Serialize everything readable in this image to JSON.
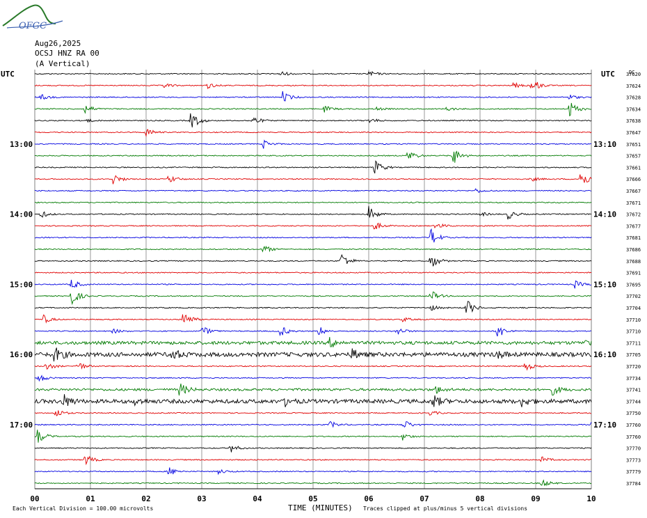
{
  "header": {
    "logo_text": "OFGC",
    "date": "Aug26,2025",
    "station": "OCSJ HNZ RA 00",
    "component": "(A Vertical)",
    "left_timezone": "UTC",
    "right_timezone": "UTC",
    "right_column_unit": "DC"
  },
  "footer": {
    "scale_note": "Each Vertical Division =  100.00 microvolts",
    "xlabel": "TIME (MINUTES)",
    "clip_note": "Traces clipped at plus/minus 5 vertical divisions"
  },
  "colors": {
    "black": "#000000",
    "red": "#e00000",
    "blue": "#0000e0",
    "green": "#007a00",
    "grid": "#808080"
  },
  "chart_data": {
    "type": "line",
    "subtype": "helicorder",
    "x_range": [
      0,
      10
    ],
    "x_ticks": [
      "00",
      "01",
      "02",
      "03",
      "04",
      "05",
      "06",
      "07",
      "08",
      "09",
      "10"
    ],
    "trace_colors_cycle": [
      "black",
      "red",
      "blue",
      "green"
    ],
    "left_hour_labels": [
      {
        "label": "13:00",
        "trace_index": 6
      },
      {
        "label": "14:00",
        "trace_index": 12
      },
      {
        "label": "15:00",
        "trace_index": 18
      },
      {
        "label": "16:00",
        "trace_index": 24
      },
      {
        "label": "17:00",
        "trace_index": 30
      }
    ],
    "right_hour_labels": [
      {
        "label": "13:10",
        "trace_index": 6
      },
      {
        "label": "14:10",
        "trace_index": 12
      },
      {
        "label": "15:10",
        "trace_index": 18
      },
      {
        "label": "16:10",
        "trace_index": 24
      },
      {
        "label": "17:10",
        "trace_index": 30
      }
    ],
    "dc_values": [
      "37620",
      "37624",
      "37628",
      "37634",
      "37638",
      "37647",
      "37651",
      "37657",
      "37661",
      "37666",
      "37667",
      "37671",
      "37672",
      "37677",
      "37681",
      "37686",
      "37688",
      "37691",
      "37695",
      "37702",
      "37704",
      "37710",
      "37710",
      "37711",
      "37705",
      "37720",
      "37734",
      "37741",
      "37744",
      "37750",
      "37760",
      "37760",
      "37770",
      "37773",
      "37779",
      "37784"
    ],
    "events": [
      [
        [
          4.4,
          0.5
        ],
        [
          6.0,
          0.45
        ]
      ],
      [
        [
          2.3,
          0.45
        ],
        [
          3.1,
          0.5
        ],
        [
          8.6,
          0.45
        ],
        [
          8.9,
          0.7
        ],
        [
          9.0,
          0.35
        ]
      ],
      [
        [
          0.1,
          0.5
        ],
        [
          4.45,
          0.9
        ],
        [
          9.6,
          0.45
        ]
      ],
      [
        [
          0.9,
          0.8
        ],
        [
          5.2,
          0.5
        ],
        [
          6.1,
          0.35
        ],
        [
          7.4,
          0.35
        ],
        [
          9.6,
          1.4
        ]
      ],
      [
        [
          0.9,
          0.35
        ],
        [
          2.8,
          1.6
        ],
        [
          3.9,
          0.8
        ],
        [
          6.0,
          0.45
        ]
      ],
      [
        [
          2.0,
          0.7
        ]
      ],
      [
        [
          4.1,
          0.7
        ]
      ],
      [
        [
          6.7,
          1.0
        ],
        [
          7.5,
          1.6
        ]
      ],
      [
        [
          6.1,
          1.3
        ]
      ],
      [
        [
          1.4,
          0.9
        ],
        [
          2.4,
          0.7
        ],
        [
          8.9,
          0.4
        ],
        [
          9.8,
          1.6
        ]
      ],
      [
        [
          7.9,
          0.4
        ]
      ],
      [],
      [
        [
          0.1,
          0.6
        ],
        [
          6.0,
          1.2
        ],
        [
          8.0,
          0.35
        ],
        [
          8.5,
          0.8
        ]
      ],
      [
        [
          6.1,
          0.7
        ],
        [
          7.2,
          0.6
        ]
      ],
      [
        [
          7.1,
          1.6
        ]
      ],
      [
        [
          4.1,
          0.7
        ]
      ],
      [
        [
          5.5,
          1.4
        ],
        [
          7.1,
          1.4
        ]
      ],
      [],
      [
        [
          0.65,
          0.9
        ],
        [
          9.7,
          0.6
        ]
      ],
      [
        [
          0.65,
          1.6
        ],
        [
          7.1,
          1.0
        ]
      ],
      [
        [
          7.1,
          0.5
        ],
        [
          7.75,
          1.4
        ]
      ],
      [
        [
          0.15,
          0.7
        ],
        [
          2.65,
          1.6
        ],
        [
          6.6,
          0.4
        ]
      ],
      [
        [
          1.4,
          0.4
        ],
        [
          3.0,
          0.9
        ],
        [
          4.4,
          1.0
        ],
        [
          5.1,
          0.8
        ],
        [
          6.5,
          0.7
        ],
        [
          8.3,
          1.3
        ]
      ],
      [
        [
          5.3,
          0.8
        ],
        [
          9.9,
          0.4
        ]
      ],
      [
        [
          0.35,
          1.2
        ],
        [
          2.45,
          1.0
        ],
        [
          5.7,
          0.8
        ],
        [
          8.3,
          0.6
        ]
      ],
      [
        [
          0.2,
          0.7
        ],
        [
          0.75,
          0.9
        ],
        [
          8.8,
          0.8
        ]
      ],
      [
        [
          0.05,
          0.8
        ]
      ],
      [
        [
          2.6,
          1.1
        ],
        [
          7.2,
          0.6
        ],
        [
          9.3,
          0.8
        ]
      ],
      [
        [
          0.5,
          1.2
        ],
        [
          1.8,
          0.5
        ],
        [
          4.5,
          0.6
        ],
        [
          7.15,
          1.0
        ],
        [
          8.75,
          0.8
        ]
      ],
      [
        [
          0.35,
          0.9
        ],
        [
          7.1,
          0.4
        ]
      ],
      [
        [
          5.3,
          0.6
        ],
        [
          6.6,
          1.0
        ],
        [
          10.0,
          0.35
        ]
      ],
      [
        [
          0.05,
          1.2
        ],
        [
          6.6,
          0.6
        ]
      ],
      [
        [
          3.5,
          0.8
        ]
      ],
      [
        [
          0.9,
          0.9
        ],
        [
          9.1,
          0.5
        ]
      ],
      [
        [
          2.4,
          0.8
        ],
        [
          3.3,
          0.4
        ]
      ],
      [
        [
          9.1,
          0.7
        ]
      ]
    ],
    "noisy_traces": {
      "23": 0.25,
      "24": 0.32,
      "28": 0.3,
      "27": 0.18
    }
  }
}
